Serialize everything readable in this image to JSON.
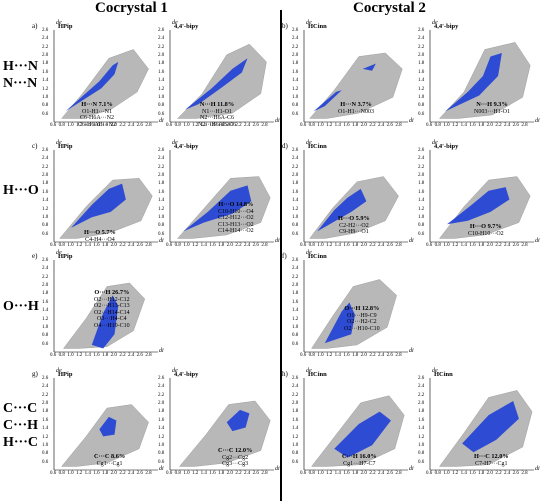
{
  "headers": {
    "cocrystal1": "Cocrystal 1",
    "cocrystal2": "Cocrystal 2"
  },
  "rows": [
    {
      "lines": [
        "H···N",
        "N···N"
      ]
    },
    {
      "lines": [
        "H···O"
      ]
    },
    {
      "lines": [
        "O···H"
      ]
    },
    {
      "lines": [
        "C···C",
        "C···H",
        "H···C"
      ]
    }
  ],
  "axis": {
    "y_ticks": [
      "2.6",
      "2.4",
      "2.2",
      "2.0",
      "1.8",
      "1.6",
      "1.4",
      "1.2",
      "1.0",
      "0.8",
      "0.6"
    ],
    "x_ticks": [
      "0.6",
      "0.8",
      "1.0",
      "1.2",
      "1.4",
      "1.6",
      "1.8",
      "2.0",
      "2.2",
      "2.4",
      "2.6",
      "2.8"
    ],
    "y_symbol": "de",
    "x_symbol": "di"
  },
  "panels": [
    {
      "id": "a",
      "letter": "a)",
      "molecule": "HPip",
      "title": "H···N 7.1%",
      "lines": [
        "O1-H1···N1",
        "C6-H6A···N2",
        "C6-H6AB···N2"
      ]
    },
    {
      "id": "a2",
      "letter": "",
      "molecule": "4,4'-bipy",
      "title": "N···H 11.8%",
      "lines": [
        "N1···H1-O1",
        "N2···H6A-C6",
        "N2···H6AB-C6"
      ]
    },
    {
      "id": "b",
      "letter": "b)",
      "molecule": "HCinn",
      "title": "H···N 3.7%",
      "lines": [
        "O1-H1···N003"
      ]
    },
    {
      "id": "b2",
      "letter": "",
      "molecule": "4,4'-bipy",
      "title": "N···H 9.3%",
      "lines": [
        "N003···H1-O1"
      ]
    },
    {
      "id": "c",
      "letter": "c)",
      "molecule": "HPip",
      "title": "H···O 5.7%",
      "lines": [
        "C4-H4···O4"
      ]
    },
    {
      "id": "c2",
      "letter": "",
      "molecule": "4,4'-bipy",
      "title": "H···O 14.8%",
      "lines": [
        "C10-H10···O4",
        "C12-H12···O2",
        "C13-H13···O2",
        "C14-H14···O2"
      ]
    },
    {
      "id": "d",
      "letter": "d)",
      "molecule": "HCinn",
      "title": "H···O 5.9%",
      "lines": [
        "C2-H2···O2",
        "C9-H9···O1"
      ]
    },
    {
      "id": "d2",
      "letter": "",
      "molecule": "4,4'-bipy",
      "title": "H···O 9.7%",
      "lines": [
        "C10-H10···O2"
      ]
    },
    {
      "id": "e",
      "letter": "e)",
      "molecule": "HPip",
      "title": "O···H 26.7%",
      "lines": [
        "O2···H12-C12",
        "O2···H13-C13",
        "O2···H14-C14",
        "O3···H4-C4",
        "O4···H10-C10"
      ]
    },
    {
      "id": "f",
      "letter": "f)",
      "molecule": "HCinn",
      "title": "O···H 12.8%",
      "lines": [
        "O1···H9-C9",
        "O2···H2-C2",
        "O2···H10-C10"
      ]
    },
    {
      "id": "g",
      "letter": "g)",
      "molecule": "HPip",
      "title": "C···C 8.6%",
      "lines": [
        "Cg1···Cg1"
      ]
    },
    {
      "id": "g2",
      "letter": "",
      "molecule": "4,4'-bipy",
      "title": "C···C 12.0%",
      "lines": [
        "Cg2···Cg2",
        "Cg3···Cg3"
      ]
    },
    {
      "id": "h",
      "letter": "h)",
      "molecule": "HCinn",
      "title": "C···H 16.0%",
      "lines": [
        "Cg1···H7-C7"
      ]
    },
    {
      "id": "h2",
      "letter": "",
      "molecule": "HCinn",
      "title": "H···C 12.0%",
      "lines": [
        "C7-H7···Cg1"
      ]
    }
  ]
}
